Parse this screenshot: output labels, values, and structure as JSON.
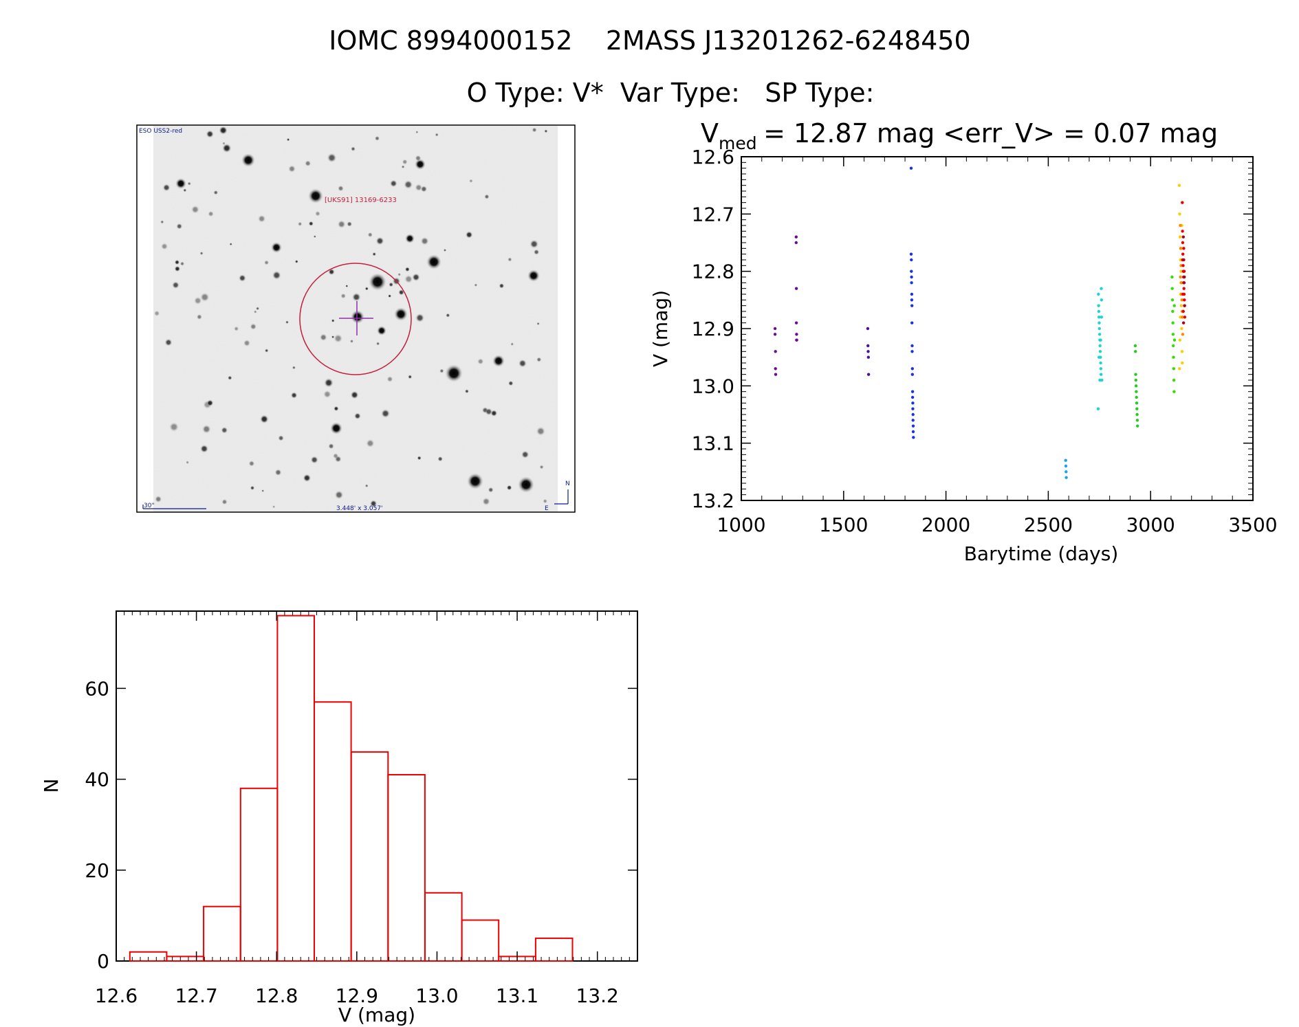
{
  "header": {
    "title": "IOMC 8994000152    2MASS J13201262-6248450",
    "subtitle": "O Type: V*  Var Type:   SP Type:"
  },
  "image_panel": {
    "survey_label": "ESO USS2-red",
    "object_label": "[UKS91] 13169-6233",
    "scale_label": "30\"",
    "fov_label": "3.448' x 3.057'",
    "north_label": "N",
    "east_label": "E"
  },
  "chart_data": [
    {
      "type": "scatter",
      "title_prefix": "V",
      "title_sub": "med",
      "title_rest": " = 12.87 mag <err_V> = 0.07 mag",
      "xlabel": "Barytime (days)",
      "ylabel": "V (mag)",
      "xlim": [
        1000,
        3500
      ],
      "ylim": [
        13.2,
        12.6
      ],
      "y_inverted": true,
      "xticks": [
        1000,
        1500,
        2000,
        2500,
        3000,
        3500
      ],
      "xtick_labels": [
        "1000",
        "1500",
        "2000",
        "2500",
        "3000",
        "3500"
      ],
      "yticks": [
        12.6,
        12.7,
        12.8,
        12.9,
        13.0,
        13.1,
        13.2
      ],
      "ytick_labels": [
        "12.6",
        "12.7",
        "12.8",
        "12.9",
        "13.0",
        "13.1",
        "13.2"
      ],
      "series": [
        {
          "color": "#6a0d91",
          "x": [
            1165,
            1165,
            1167,
            1167,
            1168,
            1268,
            1268,
            1269,
            1269,
            1270,
            1270,
            1271
          ],
          "y": [
            12.9,
            12.91,
            12.94,
            12.97,
            12.98,
            12.74,
            12.75,
            12.83,
            12.89,
            12.91,
            12.92,
            12.92
          ]
        },
        {
          "color": "#4b0fa0",
          "x": [
            1618,
            1619,
            1620,
            1621,
            1622
          ],
          "y": [
            12.9,
            12.93,
            12.94,
            12.95,
            12.98
          ]
        },
        {
          "color": "#1a33e6",
          "x": [
            1830,
            1830,
            1831,
            1831,
            1832,
            1832,
            1833,
            1833,
            1834,
            1834,
            1835,
            1835,
            1836,
            1836,
            1837,
            1837,
            1838,
            1838,
            1839,
            1839,
            1840,
            1840,
            1841
          ],
          "y": [
            12.62,
            12.77,
            12.78,
            12.8,
            12.81,
            12.82,
            12.84,
            12.85,
            12.86,
            12.89,
            12.93,
            12.94,
            12.97,
            12.98,
            13.01,
            13.02,
            13.03,
            13.04,
            13.05,
            13.06,
            13.07,
            13.08,
            13.09
          ]
        },
        {
          "color": "#1aa3e6",
          "x": [
            2585,
            2586,
            2587,
            2588
          ],
          "y": [
            13.13,
            13.14,
            13.15,
            13.16
          ]
        },
        {
          "color": "#19d6d6",
          "x": [
            2745,
            2746,
            2747,
            2748,
            2749,
            2750,
            2751,
            2752,
            2753,
            2754,
            2755,
            2756,
            2757,
            2758,
            2759,
            2760,
            2748,
            2752,
            2756,
            2760,
            2744,
            2762
          ],
          "y": [
            12.84,
            12.86,
            12.87,
            12.88,
            12.89,
            12.9,
            12.91,
            12.92,
            12.93,
            12.94,
            12.95,
            12.96,
            12.97,
            12.98,
            12.83,
            12.85,
            12.95,
            12.99,
            12.92,
            12.88,
            13.04,
            12.99
          ]
        },
        {
          "color": "#22cc22",
          "x": [
            2925,
            2926,
            2927,
            2928,
            2929,
            2930,
            2931,
            2932,
            2933,
            2934,
            2935,
            2936
          ],
          "y": [
            12.93,
            12.94,
            12.98,
            12.99,
            13.0,
            13.01,
            13.02,
            13.03,
            13.04,
            13.05,
            13.06,
            13.07
          ]
        },
        {
          "color": "#33dd00",
          "x": [
            3105,
            3106,
            3107,
            3108,
            3109,
            3110,
            3111,
            3112,
            3113,
            3114,
            3115,
            3116,
            3117
          ],
          "y": [
            12.81,
            12.83,
            12.85,
            12.87,
            12.89,
            12.91,
            12.93,
            12.95,
            12.97,
            12.99,
            13.01,
            12.86,
            12.92
          ]
        },
        {
          "color": "#ffcc00",
          "x": [
            3140,
            3142,
            3144,
            3146,
            3148,
            3150,
            3152,
            3154,
            3141,
            3143,
            3145,
            3147,
            3149,
            3151,
            3153,
            3155
          ],
          "y": [
            12.65,
            12.7,
            12.74,
            12.78,
            12.82,
            12.86,
            12.9,
            12.94,
            12.97,
            12.92,
            12.88,
            12.84,
            12.8,
            12.76,
            12.72,
            12.96
          ]
        },
        {
          "color": "#ff8800",
          "x": [
            3145,
            3147,
            3149,
            3151,
            3153,
            3155,
            3157,
            3146,
            3150,
            3154
          ],
          "y": [
            12.72,
            12.76,
            12.79,
            12.82,
            12.85,
            12.88,
            12.91,
            12.81,
            12.84,
            12.87
          ]
        },
        {
          "color": "#ee0000",
          "x": [
            3155,
            3156,
            3157,
            3158,
            3159,
            3160,
            3161,
            3162,
            3163,
            3164,
            3165,
            3166,
            3167,
            3156,
            3160,
            3164,
            3158,
            3162
          ],
          "y": [
            12.68,
            12.73,
            12.75,
            12.77,
            12.79,
            12.8,
            12.81,
            12.82,
            12.83,
            12.84,
            12.85,
            12.86,
            12.88,
            12.78,
            12.87,
            12.8,
            12.84,
            12.76
          ]
        },
        {
          "color": "#aa0022",
          "x": [
            3160,
            3162,
            3164,
            3166,
            3161,
            3165
          ],
          "y": [
            12.74,
            12.78,
            12.82,
            12.86,
            12.89,
            12.81
          ]
        }
      ]
    },
    {
      "type": "bar",
      "title": "",
      "xlabel": "V (mag)",
      "ylabel": "N",
      "xlim": [
        12.6,
        13.25
      ],
      "ylim": [
        0,
        77
      ],
      "xticks": [
        12.6,
        12.7,
        12.8,
        12.9,
        13.0,
        13.1,
        13.2
      ],
      "xtick_labels": [
        "12.6",
        "12.7",
        "12.8",
        "12.9",
        "13.0",
        "13.1",
        "13.2"
      ],
      "yticks": [
        0,
        20,
        40,
        60
      ],
      "ytick_labels": [
        "0",
        "20",
        "40",
        "60"
      ],
      "bin_edges": [
        12.617,
        12.663,
        12.709,
        12.755,
        12.801,
        12.847,
        12.893,
        12.939,
        12.985,
        13.031,
        13.077,
        13.123,
        13.169
      ],
      "counts": [
        2,
        1,
        12,
        38,
        76,
        57,
        46,
        41,
        15,
        9,
        1,
        5
      ],
      "bar_color": "#ee0000"
    }
  ]
}
